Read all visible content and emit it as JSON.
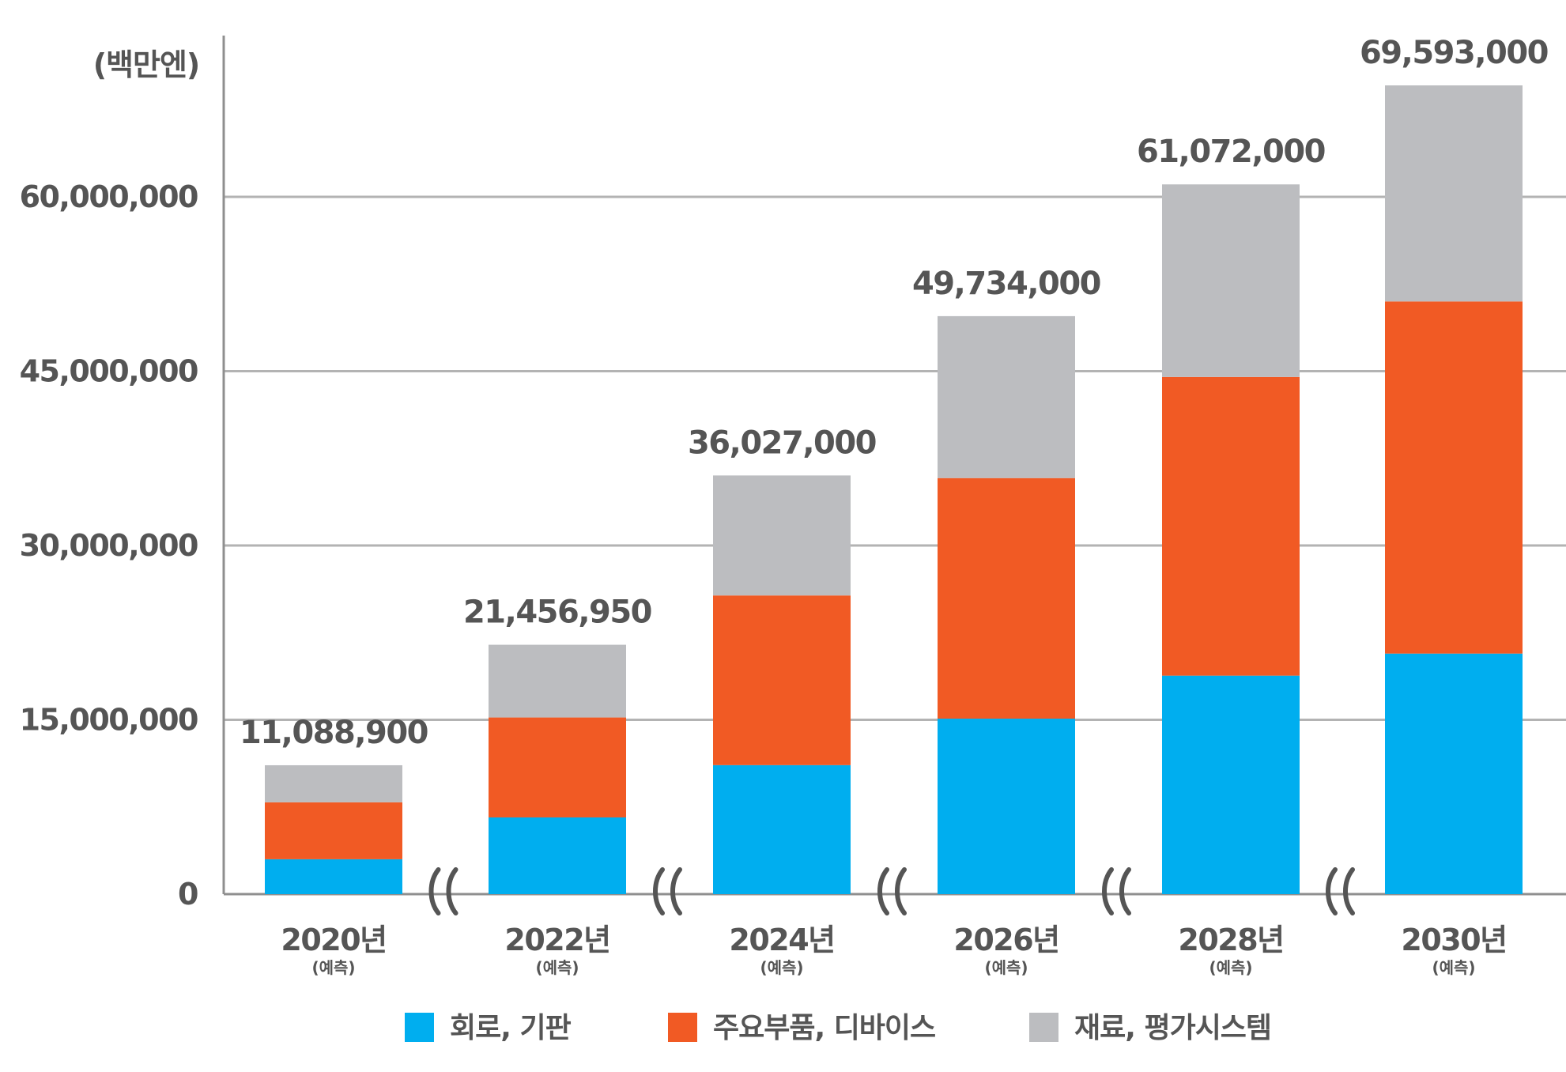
{
  "chart_data": {
    "type": "bar",
    "stacked": true,
    "unit_label": "(백만엔)",
    "categories": [
      "2020년",
      "2022년",
      "2024년",
      "2026년",
      "2028년",
      "2030년"
    ],
    "category_sublabel": "(예측)",
    "series": [
      {
        "name": "회로, 기판",
        "color": "#00AEEF",
        "values": [
          3000000,
          6600000,
          11100000,
          15100000,
          18800000,
          20700000
        ]
      },
      {
        "name": "주요부품, 디바이스",
        "color": "#F15A24",
        "values": [
          4900000,
          8600000,
          14600000,
          20700000,
          25700000,
          30300000
        ]
      },
      {
        "name": "재료, 평가시스템",
        "color": "#BCBDC0",
        "values": [
          3188900,
          6256950,
          10327000,
          13934000,
          16572000,
          18593000
        ]
      }
    ],
    "totals": [
      "11,088,900",
      "21,456,950",
      "36,027,000",
      "49,734,000",
      "61,072,000",
      "69,593,000"
    ],
    "total_values": [
      11088900,
      21456950,
      36027000,
      49734000,
      61072000,
      69593000
    ],
    "y_ticks": [
      "0",
      "15,000,000",
      "30,000,000",
      "45,000,000",
      "60,000,000"
    ],
    "y_tick_values": [
      0,
      15000000,
      30000000,
      45000000,
      60000000
    ],
    "ylim": [
      0,
      75000000
    ],
    "grid": true,
    "axis_breaks": true,
    "legend_position": "bottom"
  }
}
